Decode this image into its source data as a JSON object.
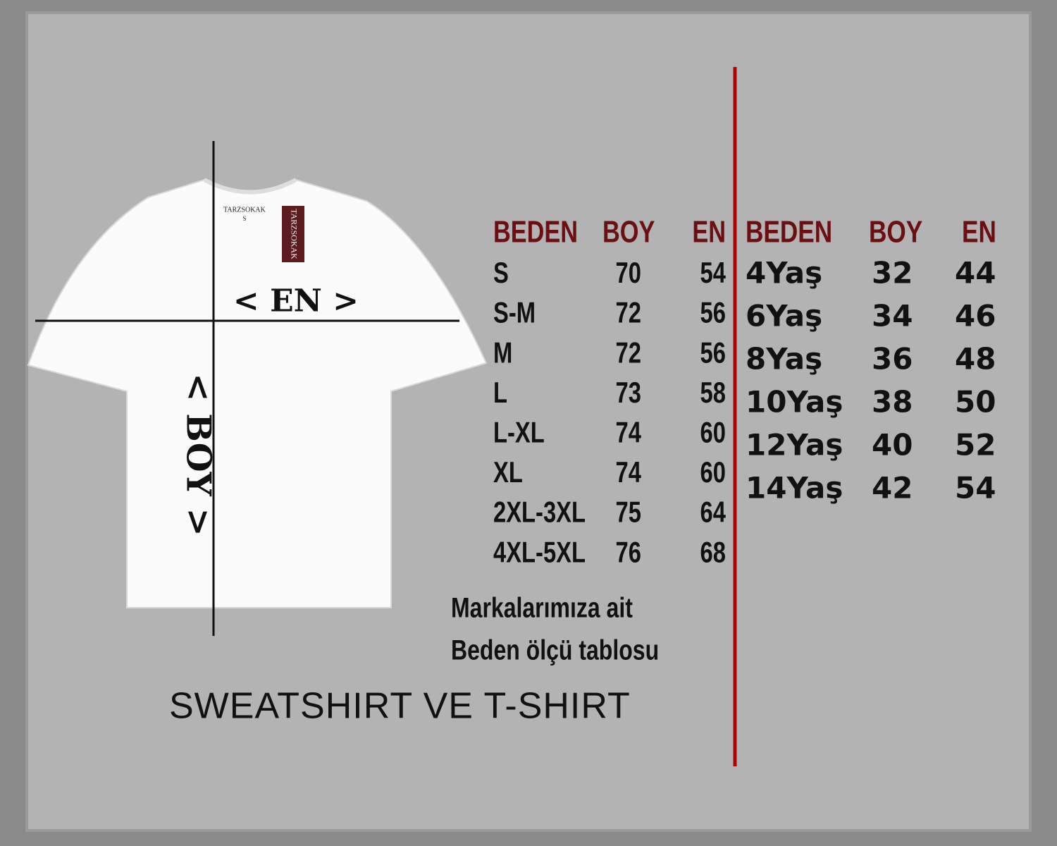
{
  "shirt": {
    "collar_brand": "TARZSOKAK",
    "collar_size": "S",
    "tag": "TARZSOKAK",
    "width_label": "< EN >",
    "length_label": "< BOY >"
  },
  "adult_table": {
    "headers": [
      "BEDEN",
      "BOY",
      "EN"
    ],
    "rows": [
      [
        "S",
        70,
        54
      ],
      [
        "S-M",
        72,
        56
      ],
      [
        "M",
        72,
        56
      ],
      [
        "L",
        73,
        58
      ],
      [
        "L-XL",
        74,
        60
      ],
      [
        "XL",
        74,
        60
      ],
      [
        "2XL-3XL",
        75,
        64
      ],
      [
        "4XL-5XL",
        76,
        68
      ]
    ]
  },
  "kids_table": {
    "headers": [
      "BEDEN",
      "BOY",
      "EN"
    ],
    "rows": [
      [
        "4Yaş",
        32,
        44
      ],
      [
        "6Yaş",
        34,
        46
      ],
      [
        "8Yaş",
        36,
        48
      ],
      [
        "10Yaş",
        38,
        50
      ],
      [
        "12Yaş",
        40,
        52
      ],
      [
        "14Yaş",
        42,
        54
      ]
    ]
  },
  "note": [
    "Markalarımıza ait",
    "Beden ölçü tablosu"
  ],
  "footer": "SWEATSHIRT VE T-SHIRT"
}
